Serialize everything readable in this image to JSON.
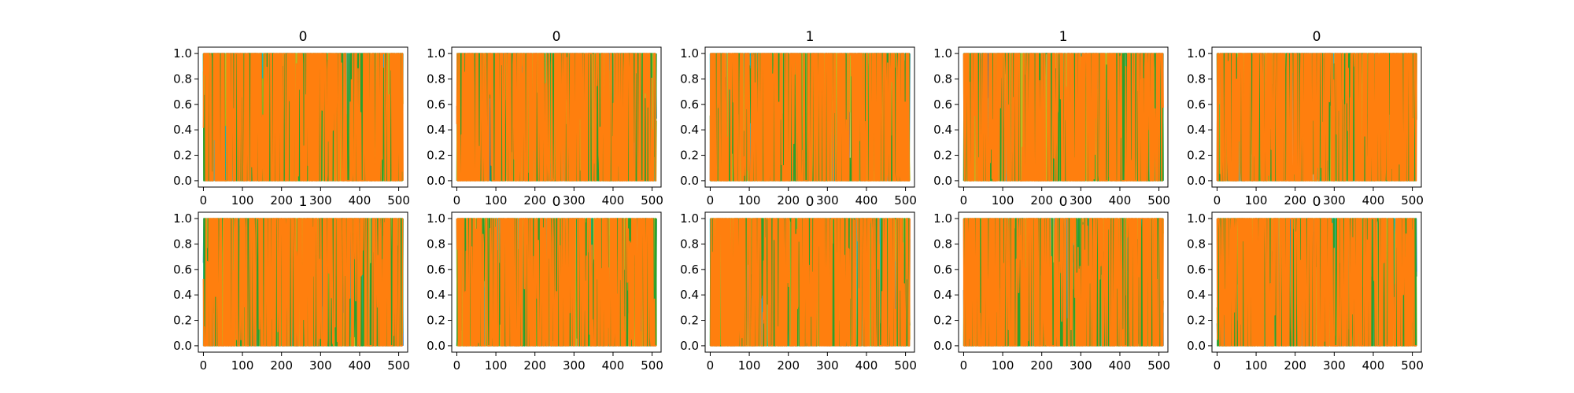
{
  "chart_data": {
    "type": "line",
    "layout": {
      "rows": 2,
      "cols": 5
    },
    "xlim": [
      -13,
      523
    ],
    "ylim": [
      -0.05,
      1.05
    ],
    "x_ticks": [
      0,
      100,
      200,
      300,
      400,
      500
    ],
    "y_ticks": [
      0.0,
      0.2,
      0.4,
      0.6,
      0.8,
      1.0
    ],
    "x_tick_labels": [
      "0",
      "100",
      "200",
      "300",
      "400",
      "500"
    ],
    "y_tick_labels": [
      "0.0",
      "0.2",
      "0.4",
      "0.6",
      "0.8",
      "1.0"
    ],
    "n_points": 512,
    "series_colors": [
      "#1f77b4",
      "#17becf",
      "#bcbd22",
      "#2ca02c",
      "#ff7f0e"
    ],
    "panels": [
      {
        "title": "0"
      },
      {
        "title": "0"
      },
      {
        "title": "1"
      },
      {
        "title": "1"
      },
      {
        "title": "0"
      },
      {
        "title": "1"
      },
      {
        "title": "0"
      },
      {
        "title": "0"
      },
      {
        "title": "0"
      },
      {
        "title": "0"
      }
    ]
  }
}
